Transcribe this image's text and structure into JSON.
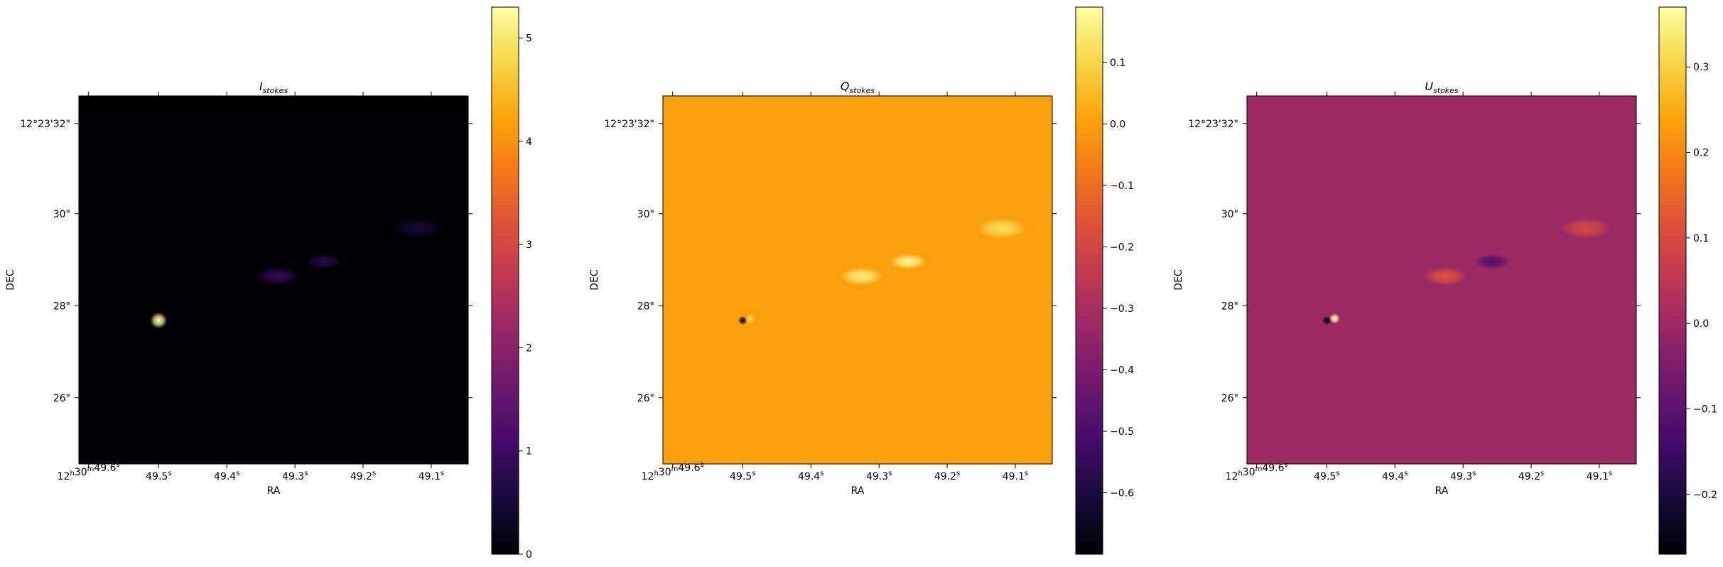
{
  "figure": {
    "type": "heatmap",
    "xlabel": "RA",
    "ylabel": "DEC"
  },
  "chart_data": [
    {
      "type": "heatmap",
      "title_main": "I",
      "title_sub": "stokes",
      "xlabel": "RA",
      "ylabel": "DEC",
      "x_ticks": [
        "12h30m49.6s",
        "49.5s",
        "49.4s",
        "49.3s",
        "49.2s",
        "49.1s"
      ],
      "x_tick_parts": [
        {
          "a": "12",
          "b": "h",
          "c": "30",
          "d": "m",
          "e": "49.6",
          "f": "s"
        },
        {
          "e": "49.5",
          "f": "s"
        },
        {
          "e": "49.4",
          "f": "s"
        },
        {
          "e": "49.3",
          "f": "s"
        },
        {
          "e": "49.2",
          "f": "s"
        },
        {
          "e": "49.1",
          "f": "s"
        }
      ],
      "y_ticks": [
        "12°23'32\"",
        "30\"",
        "28\"",
        "26\""
      ],
      "colormap": "inferno",
      "colorbar": {
        "min": 0,
        "max": 5.3,
        "ticks": [
          0,
          1,
          2,
          3,
          4,
          5
        ],
        "tick_labels": [
          "0",
          "1",
          "2",
          "3",
          "4",
          "5"
        ]
      },
      "background_value": 0.0,
      "features": [
        {
          "label": "core",
          "value": 5.3
        },
        {
          "label": "jet-knot-1",
          "value": 0.9
        },
        {
          "label": "jet-knot-2",
          "value": 0.7
        },
        {
          "label": "jet-knot-3",
          "value": 0.5
        }
      ]
    },
    {
      "type": "heatmap",
      "title_main": "Q",
      "title_sub": "stokes",
      "xlabel": "RA",
      "ylabel": "DEC",
      "x_ticks": [
        "12h30m49.6s",
        "49.5s",
        "49.4s",
        "49.3s",
        "49.2s",
        "49.1s"
      ],
      "y_ticks": [
        "12°23'32\"",
        "30\"",
        "28\"",
        "26\""
      ],
      "colormap": "inferno",
      "colorbar": {
        "min": -0.7,
        "max": 0.19,
        "ticks": [
          0.1,
          0.0,
          -0.1,
          -0.2,
          -0.3,
          -0.4,
          -0.5,
          -0.6
        ],
        "tick_labels": [
          "0.1",
          "0.0",
          "−0.1",
          "−0.2",
          "−0.3",
          "−0.4",
          "−0.5",
          "−0.6"
        ]
      },
      "background_value": 0.0,
      "features": [
        {
          "label": "core-negative",
          "value": -0.7
        },
        {
          "label": "core-positive",
          "value": 0.1
        },
        {
          "label": "jet-knot-1",
          "value": 0.15
        },
        {
          "label": "jet-knot-2",
          "value": 0.17
        },
        {
          "label": "jet-knot-3",
          "value": 0.12
        }
      ]
    },
    {
      "type": "heatmap",
      "title_main": "U",
      "title_sub": "stokes",
      "xlabel": "RA",
      "ylabel": "DEC",
      "x_ticks": [
        "12h30m49.6s",
        "49.5s",
        "49.4s",
        "49.3s",
        "49.2s",
        "49.1s"
      ],
      "y_ticks": [
        "12°23'32\"",
        "30\"",
        "28\"",
        "26\""
      ],
      "colormap": "inferno",
      "colorbar": {
        "min": -0.27,
        "max": 0.37,
        "ticks": [
          0.3,
          0.2,
          0.1,
          0.0,
          -0.1,
          -0.2
        ],
        "tick_labels": [
          "0.3",
          "0.2",
          "0.1",
          "0.0",
          "−0.1",
          "−0.2"
        ]
      },
      "background_value": 0.0,
      "features": [
        {
          "label": "core-positive",
          "value": 0.37
        },
        {
          "label": "core-negative",
          "value": -0.27
        },
        {
          "label": "jet-knot-1",
          "value": 0.12
        },
        {
          "label": "jet-knot-2",
          "value": -0.12
        },
        {
          "label": "jet-knot-3",
          "value": 0.1
        }
      ]
    }
  ]
}
